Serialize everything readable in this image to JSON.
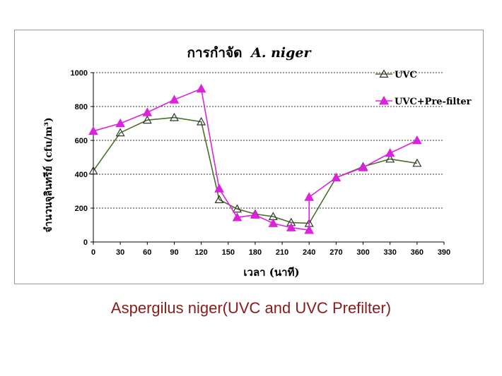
{
  "caption": "Aspergilus niger(UVC and UVC Prefilter)",
  "chart_data": {
    "type": "line",
    "title_thai": "การกำจัด",
    "title_species": "A. niger",
    "xlabel": "เวลา (นาที)",
    "ylabel": "จำนวนจุลินทรีย์ (cfu/m³)",
    "x_ticks": [
      0,
      30,
      60,
      90,
      120,
      150,
      180,
      210,
      240,
      270,
      300,
      330,
      360,
      390
    ],
    "y_ticks": [
      0,
      200,
      400,
      600,
      800,
      1000
    ],
    "xlim": [
      0,
      390
    ],
    "ylim": [
      0,
      1000
    ],
    "grid": "horizontal dashed",
    "legend_position": "top-right",
    "series": [
      {
        "name": "UVC",
        "color": "#4a6e2a",
        "marker": "open-triangle",
        "x": [
          0,
          30,
          60,
          90,
          120,
          140,
          160,
          180,
          200,
          220,
          240,
          270,
          300,
          330,
          360
        ],
        "y": [
          420,
          645,
          720,
          735,
          710,
          250,
          195,
          165,
          150,
          115,
          110,
          380,
          445,
          490,
          465
        ]
      },
      {
        "name": "UVC+Pre-filter",
        "color": "#dd22dd",
        "marker": "filled-triangle",
        "x": [
          0,
          30,
          60,
          90,
          120,
          140,
          160,
          180,
          200,
          220,
          240,
          240,
          270,
          300,
          330,
          360
        ],
        "y": [
          655,
          700,
          765,
          840,
          905,
          315,
          145,
          160,
          110,
          85,
          70,
          265,
          380,
          440,
          525,
          600
        ]
      }
    ]
  }
}
